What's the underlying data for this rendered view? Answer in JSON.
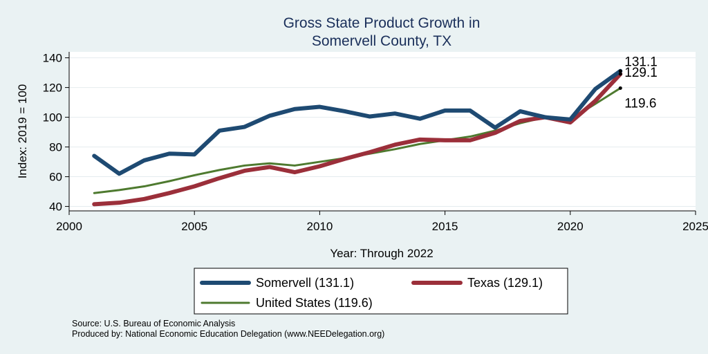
{
  "chart_data": {
    "type": "line",
    "title": [
      "Gross State Product Growth in",
      "Somervell County, TX"
    ],
    "xlabel": "Year: Through 2022",
    "ylabel": "Index: 2019 = 100",
    "xlim": [
      2000,
      2025
    ],
    "ylim": [
      37,
      144
    ],
    "xticks": [
      2000,
      2005,
      2010,
      2015,
      2020,
      2025
    ],
    "yticks": [
      40,
      60,
      80,
      100,
      120,
      140
    ],
    "grid": true,
    "x": [
      2001,
      2002,
      2003,
      2004,
      2005,
      2006,
      2007,
      2008,
      2009,
      2010,
      2011,
      2012,
      2013,
      2014,
      2015,
      2016,
      2017,
      2018,
      2019,
      2020,
      2021,
      2022
    ],
    "series": [
      {
        "name": "United States",
        "color": "#4e7a2f",
        "width": 3,
        "values": [
          49,
          51,
          53.5,
          57,
          61,
          64.5,
          67.5,
          69,
          67.5,
          70,
          72.5,
          75.5,
          78.5,
          82,
          84.5,
          87,
          91,
          96,
          100,
          98.5,
          109,
          119.6
        ],
        "end_label": "119.6"
      },
      {
        "name": "Texas",
        "color": "#9b2f3a",
        "width": 6,
        "values": [
          41.5,
          42.5,
          45,
          49,
          53.5,
          59,
          64,
          66.5,
          63,
          67,
          72,
          76.5,
          81.5,
          85,
          84.5,
          84.5,
          89.5,
          97.5,
          100,
          96.5,
          111,
          129.1
        ],
        "end_label": "129.1"
      },
      {
        "name": "Somervell",
        "color": "#1e4a72",
        "width": 6,
        "values": [
          74,
          62,
          71,
          75.5,
          75,
          91,
          93.5,
          101,
          105.5,
          107,
          104,
          100.5,
          102.5,
          99,
          104.5,
          104.5,
          93,
          104,
          100,
          98.5,
          119,
          131.1
        ],
        "end_label": "131.1"
      }
    ],
    "legend": [
      {
        "label": "Somervell  (131.1)",
        "color": "#1e4a72",
        "width": 6
      },
      {
        "label": "Texas (129.1)",
        "color": "#9b2f3a",
        "width": 6
      },
      {
        "label": "United States (119.6)",
        "color": "#4e7a2f",
        "width": 3
      }
    ],
    "notes": [
      "Source: U.S. Bureau of Economic Analysis",
      "Produced by: National Economic Education Delegation (www.NEEDelegation.org)"
    ]
  }
}
